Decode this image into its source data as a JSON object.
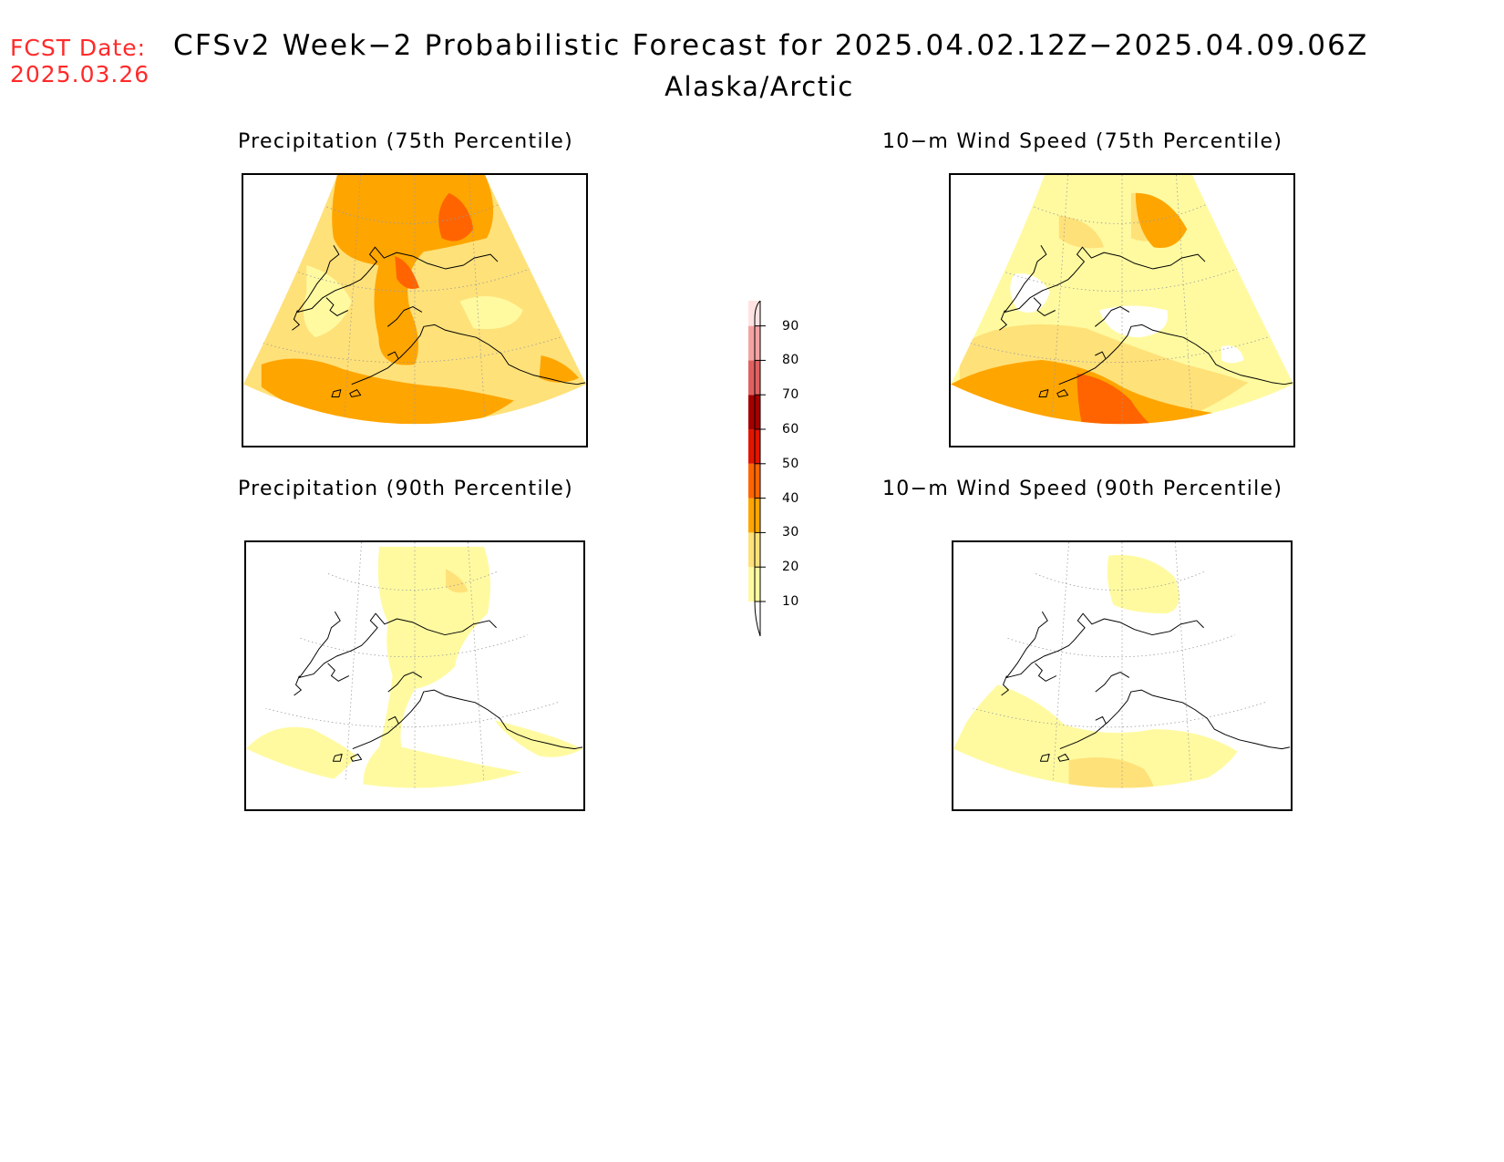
{
  "header": {
    "fcst_label": "FCST Date:",
    "fcst_date": "2025.03.26",
    "title": "CFSv2 Week−2 Probabilistic Forecast for 2025.04.02.12Z−2025.04.09.06Z",
    "subtitle": "Alaska/Arctic"
  },
  "panels": [
    {
      "id": "precip-75",
      "title": "Precipitation (75th Percentile)",
      "base_level": 20
    },
    {
      "id": "wind-75",
      "title": "10−m Wind Speed (75th Percentile)",
      "base_level": 10
    },
    {
      "id": "precip-90",
      "title": "Precipitation (90th Percentile)",
      "base_level": 10
    },
    {
      "id": "wind-90",
      "title": "10−m Wind Speed (90th Percentile)",
      "base_level": 0
    }
  ],
  "colorbar": {
    "levels": [
      "10",
      "20",
      "30",
      "40",
      "50",
      "60",
      "70",
      "80",
      "90"
    ],
    "colors": {
      "c10": "#fffaa0",
      "c20": "#ffe179",
      "c30": "#ffa500",
      "c40": "#ff6400",
      "c50": "#e11400",
      "c60": "#a50000",
      "c70": "#e06060",
      "c80": "#f4a3a3",
      "c90": "#ffe3e3"
    }
  },
  "colors": {
    "fcst_text": "#ff2a2a",
    "coastline": "#000000",
    "graticule": "#999999"
  }
}
